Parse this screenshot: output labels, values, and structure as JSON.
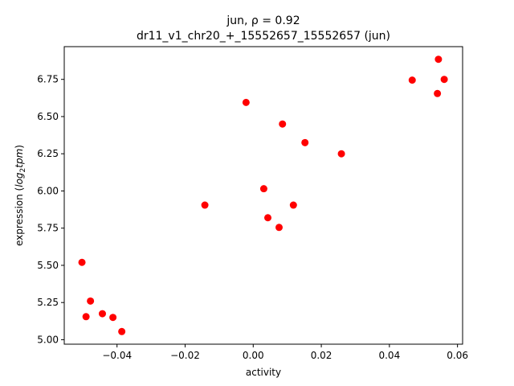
{
  "chart_data": {
    "type": "scatter",
    "title": "jun, ρ = 0.92",
    "subtitle": "dr11_v1_chr20_+_15552657_15552657 (jun)",
    "xlabel": "activity",
    "ylabel_prefix": "expression (",
    "ylabel_math": "log",
    "ylabel_sub": "2",
    "ylabel_math2": "tpm",
    "ylabel_suffix": ")",
    "xlim": [
      -0.0555,
      0.0615
    ],
    "ylim": [
      4.97,
      6.97
    ],
    "xticks": [
      -0.04,
      -0.02,
      0.0,
      0.02,
      0.04,
      0.06
    ],
    "xtick_labels": [
      "−0.04",
      "−0.02",
      "0.00",
      "0.02",
      "0.04",
      "0.06"
    ],
    "yticks": [
      5.0,
      5.25,
      5.5,
      5.75,
      6.0,
      6.25,
      6.5,
      6.75
    ],
    "ytick_labels": [
      "5.00",
      "5.25",
      "5.50",
      "5.75",
      "6.00",
      "6.25",
      "6.50",
      "6.75"
    ],
    "grid": false,
    "marker_color": "#ff0000",
    "points": [
      {
        "x": -0.0503,
        "y": 5.52
      },
      {
        "x": -0.0491,
        "y": 5.155
      },
      {
        "x": -0.0478,
        "y": 5.26
      },
      {
        "x": -0.0443,
        "y": 5.175
      },
      {
        "x": -0.0412,
        "y": 5.15
      },
      {
        "x": -0.0386,
        "y": 5.055
      },
      {
        "x": -0.0142,
        "y": 5.905
      },
      {
        "x": -0.0021,
        "y": 6.595
      },
      {
        "x": 0.0031,
        "y": 6.015
      },
      {
        "x": 0.0043,
        "y": 5.82
      },
      {
        "x": 0.0076,
        "y": 5.755
      },
      {
        "x": 0.0086,
        "y": 6.45
      },
      {
        "x": 0.0118,
        "y": 5.905
      },
      {
        "x": 0.0152,
        "y": 6.325
      },
      {
        "x": 0.0259,
        "y": 6.25
      },
      {
        "x": 0.0467,
        "y": 6.745
      },
      {
        "x": 0.0541,
        "y": 6.655
      },
      {
        "x": 0.0544,
        "y": 6.885
      },
      {
        "x": 0.0561,
        "y": 6.75
      }
    ]
  }
}
